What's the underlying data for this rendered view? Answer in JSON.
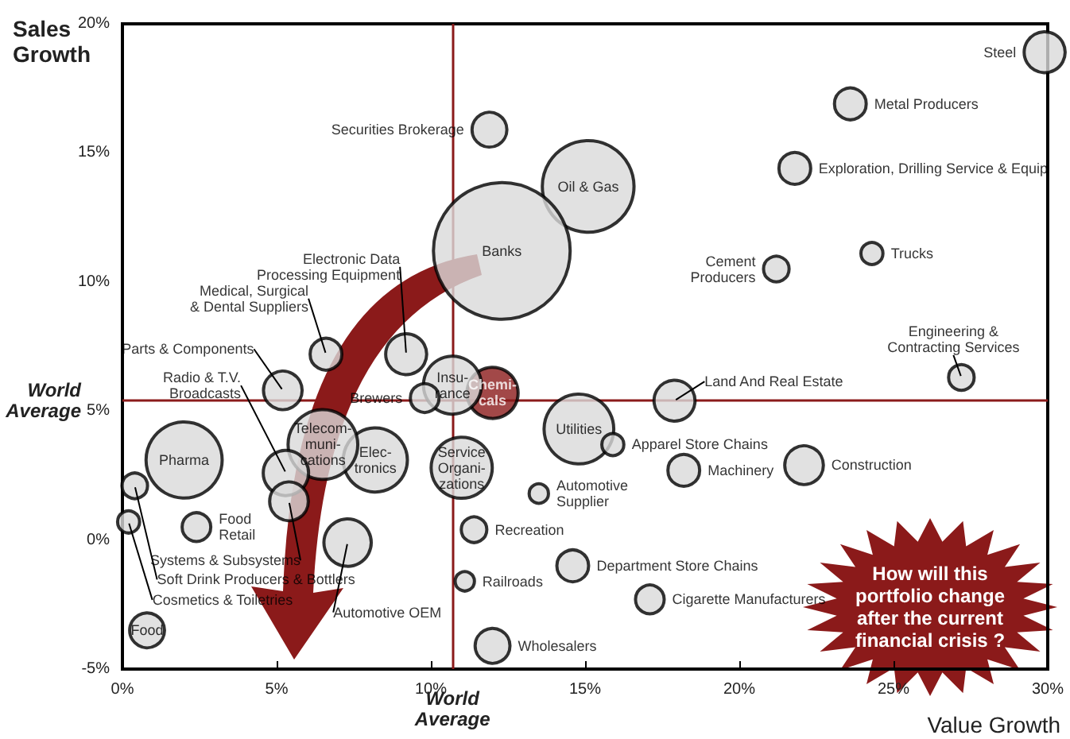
{
  "chart_data": {
    "type": "bubble",
    "xlabel": "Value Growth",
    "ylabel": "Sales\nGrowth",
    "x": [
      29.9,
      23.6,
      21.8,
      15.1,
      12.3,
      11.9,
      21.2,
      24.3,
      27.2,
      17.9,
      14.8,
      15.9,
      18.2,
      22.1,
      13.5,
      11.4,
      11.1,
      14.6,
      17.1,
      12.0,
      12.0,
      10.7,
      9.8,
      11.0,
      8.2,
      6.5,
      9.2,
      6.6,
      5.2,
      5.3,
      5.4,
      2.0,
      2.4,
      0.4,
      0.2,
      0.8,
      7.3
    ],
    "values": [
      18.9,
      16.9,
      14.4,
      13.7,
      11.2,
      15.9,
      10.5,
      11.1,
      6.3,
      5.4,
      4.3,
      3.7,
      2.7,
      2.9,
      1.8,
      0.4,
      -1.6,
      -1.0,
      -2.3,
      -4.1,
      5.7,
      6.0,
      5.5,
      2.8,
      3.1,
      3.7,
      7.2,
      7.2,
      5.8,
      2.6,
      1.5,
      3.1,
      0.5,
      2.1,
      0.7,
      -3.5,
      -0.1
    ],
    "sizes": [
      0.09,
      0.054,
      0.054,
      0.45,
      1,
      0.065,
      0.035,
      0.026,
      0.035,
      0.09,
      0.26,
      0.026,
      0.054,
      0.08,
      0.02,
      0.035,
      0.02,
      0.054,
      0.044,
      0.065,
      0.14,
      0.18,
      0.044,
      0.2,
      0.22,
      0.26,
      0.09,
      0.054,
      0.08,
      0.11,
      0.08,
      0.31,
      0.044,
      0.035,
      0.026,
      0.065,
      0.12
    ],
    "colors": [
      "#d9d9d9",
      "#d9d9d9",
      "#d9d9d9",
      "#d9d9d9",
      "#d9d9d9",
      "#d9d9d9",
      "#d9d9d9",
      "#d9d9d9",
      "#d9d9d9",
      "#d9d9d9",
      "#d9d9d9",
      "#d9d9d9",
      "#d9d9d9",
      "#d9d9d9",
      "#d9d9d9",
      "#d9d9d9",
      "#d9d9d9",
      "#d9d9d9",
      "#d9d9d9",
      "#d9d9d9",
      "#8b1a1a",
      "#d9d9d9",
      "#d9d9d9",
      "#d9d9d9",
      "#d9d9d9",
      "#d9d9d9",
      "#d9d9d9",
      "#d9d9d9",
      "#d9d9d9",
      "#d9d9d9",
      "#d9d9d9",
      "#d9d9d9",
      "#d9d9d9",
      "#d9d9d9",
      "#d9d9d9",
      "#d9d9d9",
      "#d9d9d9"
    ],
    "marker": "circle",
    "xlim": [
      0,
      30
    ],
    "xticks": [
      {
        "value": 0,
        "label": "0%"
      },
      {
        "value": 5,
        "label": "5%"
      },
      {
        "value": 10,
        "label": "10%"
      },
      {
        "value": 15,
        "label": "15%"
      },
      {
        "value": 20,
        "label": "20%"
      },
      {
        "value": 25,
        "label": "25%"
      },
      {
        "value": 30,
        "label": "30%"
      }
    ],
    "ylim": [
      -5,
      20
    ],
    "yticks": [
      {
        "value": -5,
        "label": "-5%"
      },
      {
        "value": 0,
        "label": "0%"
      },
      {
        "value": 5,
        "label": "5%"
      },
      {
        "value": 10,
        "label": "10%"
      },
      {
        "value": 15,
        "label": "15%"
      },
      {
        "value": 20,
        "label": "20%"
      }
    ],
    "ref_lines": [
      {
        "axis": "x",
        "value": 10.7,
        "label": "World\nAverage",
        "color": "#8b1a1a"
      },
      {
        "axis": "y",
        "value": 5.4,
        "label": "World\nAverage",
        "color": "#8b1a1a"
      }
    ],
    "annotations": [
      "How will this\nportfolio change\nafter the current\nfinancial crisis ?",
      {
        "text": "Steel",
        "x": 29.9,
        "y": 18.9
      },
      {
        "text": "Metal Producers",
        "x": 23.6,
        "y": 16.9
      },
      {
        "text": "Exploration, Drilling Service & Equip",
        "x": 21.8,
        "y": 14.4
      },
      {
        "text": "Oil & Gas",
        "x": 15.1,
        "y": 13.7
      },
      {
        "text": "Banks",
        "x": 12.3,
        "y": 11.2
      },
      {
        "text": "Securities Brokerage",
        "x": 11.9,
        "y": 15.9
      },
      {
        "text": "Cement\nProducers",
        "x": 21.2,
        "y": 10.5
      },
      {
        "text": "Trucks",
        "x": 24.3,
        "y": 11.1
      },
      {
        "text": "Engineering &\nContracting Services",
        "x": 27.2,
        "y": 6.3
      },
      {
        "text": "Land And Real Estate",
        "x": 17.9,
        "y": 5.4
      },
      {
        "text": "Utilities",
        "x": 14.8,
        "y": 4.3
      },
      {
        "text": "Apparel Store Chains",
        "x": 15.9,
        "y": 3.7
      },
      {
        "text": "Machinery",
        "x": 18.2,
        "y": 2.7
      },
      {
        "text": "Construction",
        "x": 22.1,
        "y": 2.9
      },
      {
        "text": "Automotive\nSupplier",
        "x": 13.5,
        "y": 1.8
      },
      {
        "text": "Recreation",
        "x": 11.4,
        "y": 0.4
      },
      {
        "text": "Railroads",
        "x": 11.1,
        "y": -1.6
      },
      {
        "text": "Department Store Chains",
        "x": 14.6,
        "y": -1.0
      },
      {
        "text": "Cigarette Manufacturers",
        "x": 17.1,
        "y": -2.3
      },
      {
        "text": "Wholesalers",
        "x": 12.0,
        "y": -4.1
      },
      {
        "text": "Chemi-\ncals",
        "x": 12.0,
        "y": 5.7
      },
      {
        "text": "Insu-\nrance",
        "x": 10.7,
        "y": 6.0
      },
      {
        "text": "Brewers",
        "x": 9.8,
        "y": 5.5
      },
      {
        "text": "Service\nOrgani-\nzations",
        "x": 11.0,
        "y": 2.8
      },
      {
        "text": "Elec-\ntronics",
        "x": 8.2,
        "y": 3.1
      },
      {
        "text": "Telecom-\nmuni-\ncations",
        "x": 6.5,
        "y": 3.7
      },
      {
        "text": "Electronic Data\nProcessing Equipment",
        "x": 9.2,
        "y": 7.2
      },
      {
        "text": "Medical, Surgical\n& Dental Suppliers",
        "x": 6.6,
        "y": 7.2
      },
      {
        "text": "Parts & Components",
        "x": 5.2,
        "y": 5.8
      },
      {
        "text": "Radio & T.V.\nBroadcasts",
        "x": 5.3,
        "y": 2.6
      },
      {
        "text": "Systems & Subsystems",
        "x": 5.4,
        "y": 1.5
      },
      {
        "text": "Pharma",
        "x": 2.0,
        "y": 3.1
      },
      {
        "text": "Food\nRetail",
        "x": 2.4,
        "y": 0.5
      },
      {
        "text": "Soft Drink Producers & Bottlers",
        "x": 0.4,
        "y": 2.1
      },
      {
        "text": "Cosmetics & Toiletries",
        "x": 0.2,
        "y": 0.7
      },
      {
        "text": "Food",
        "x": 0.8,
        "y": -3.5
      },
      {
        "text": "Automotive OEM",
        "x": 7.3,
        "y": -0.1
      }
    ]
  }
}
